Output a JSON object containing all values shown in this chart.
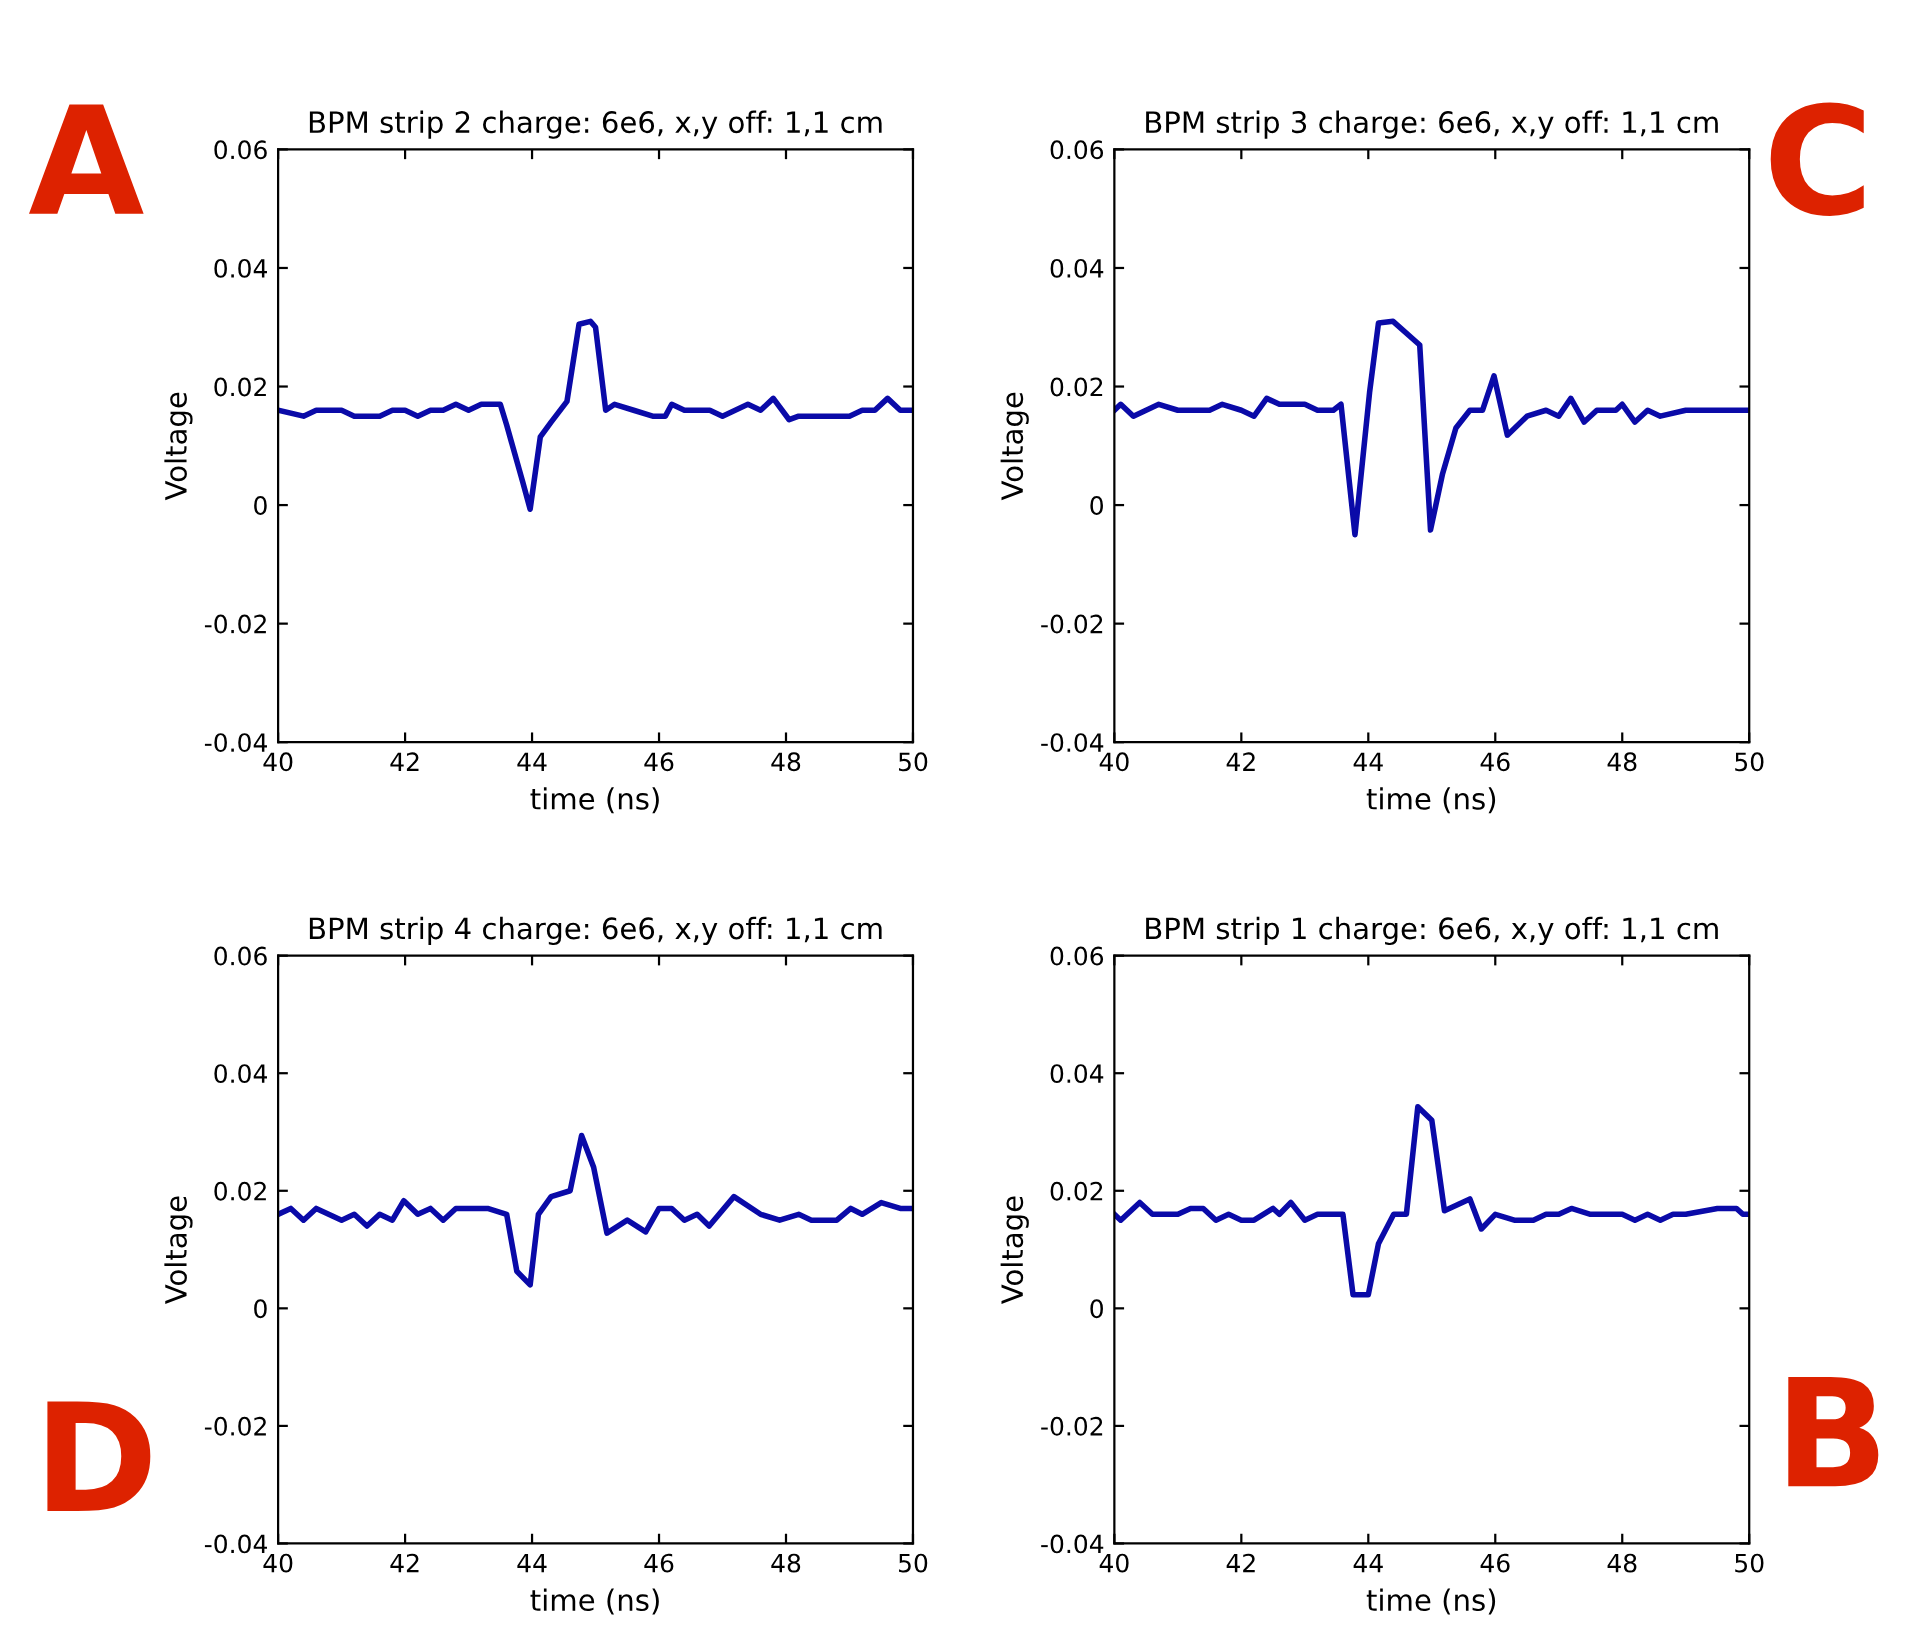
{
  "chart_data": [
    {
      "type": "line",
      "title": "BPM strip 2 charge: 6e6, x,y off: 1,1 cm",
      "xlabel": "time (ns)",
      "ylabel": "Voltage",
      "annotations": [
        "A"
      ],
      "xlim": [
        40,
        50
      ],
      "ylim": [
        -0.04,
        0.06
      ],
      "xticks": [
        40,
        42,
        44,
        46,
        48,
        50
      ],
      "yticks": [
        -0.04,
        -0.02,
        0,
        0.02,
        0.04,
        0.06
      ],
      "grid": false,
      "legend": false,
      "series": [
        {
          "color": "#0a0aa8",
          "x": [
            40,
            40.4,
            40.6,
            41.0,
            41.2,
            41.6,
            41.8,
            42.0,
            42.2,
            42.4,
            42.6,
            42.8,
            43.0,
            43.2,
            43.5,
            43.6,
            43.85,
            43.97,
            44.13,
            44.3,
            44.55,
            44.74,
            44.92,
            45.0,
            45.16,
            45.3,
            45.6,
            45.9,
            46.1,
            46.2,
            46.4,
            46.8,
            47.0,
            47.2,
            47.4,
            47.6,
            47.8,
            48.05,
            48.2,
            48.6,
            49.0,
            49.2,
            49.4,
            49.6,
            49.8,
            50
          ],
          "values": [
            0.016,
            0.015,
            0.016,
            0.016,
            0.015,
            0.015,
            0.016,
            0.016,
            0.015,
            0.016,
            0.016,
            0.017,
            0.016,
            0.017,
            0.017,
            0.0135,
            0.004,
            -0.0007,
            0.0115,
            0.014,
            0.0175,
            0.0305,
            0.031,
            0.03,
            0.016,
            0.017,
            0.016,
            0.015,
            0.015,
            0.017,
            0.016,
            0.016,
            0.015,
            0.016,
            0.017,
            0.016,
            0.018,
            0.0144,
            0.015,
            0.015,
            0.015,
            0.016,
            0.016,
            0.018,
            0.016,
            0.016
          ]
        }
      ]
    },
    {
      "type": "line",
      "title": "BPM strip 3 charge: 6e6, x,y off: 1,1 cm",
      "xlabel": "time (ns)",
      "ylabel": "Voltage",
      "annotations": [
        "C"
      ],
      "xlim": [
        40,
        50
      ],
      "ylim": [
        -0.04,
        0.06
      ],
      "xticks": [
        40,
        42,
        44,
        46,
        48,
        50
      ],
      "yticks": [
        -0.04,
        -0.02,
        0,
        0.02,
        0.04,
        0.06
      ],
      "grid": false,
      "legend": false,
      "series": [
        {
          "color": "#0a0aa8",
          "x": [
            40,
            40.1,
            40.3,
            40.7,
            41.0,
            41.5,
            41.7,
            42.0,
            42.2,
            42.4,
            42.6,
            43.0,
            43.2,
            43.45,
            43.57,
            43.79,
            44.02,
            44.16,
            44.39,
            44.81,
            44.98,
            45.17,
            45.38,
            45.6,
            45.8,
            45.98,
            46.19,
            46.5,
            46.8,
            47.0,
            47.19,
            47.4,
            47.6,
            47.9,
            48.0,
            48.2,
            48.4,
            48.6,
            49.0,
            49.3,
            49.6,
            50
          ],
          "values": [
            0.016,
            0.017,
            0.015,
            0.017,
            0.016,
            0.016,
            0.017,
            0.016,
            0.015,
            0.018,
            0.017,
            0.017,
            0.016,
            0.016,
            0.017,
            -0.005,
            0.019,
            0.0307,
            0.031,
            0.027,
            -0.0042,
            0.0053,
            0.013,
            0.016,
            0.016,
            0.0218,
            0.0118,
            0.015,
            0.016,
            0.015,
            0.018,
            0.014,
            0.016,
            0.016,
            0.017,
            0.014,
            0.016,
            0.015,
            0.016,
            0.016,
            0.016,
            0.016
          ]
        }
      ]
    },
    {
      "type": "line",
      "title": "BPM strip 4 charge: 6e6, x,y off: 1,1 cm",
      "xlabel": "time (ns)",
      "ylabel": "Voltage",
      "annotations": [
        "D"
      ],
      "xlim": [
        40,
        50
      ],
      "ylim": [
        -0.04,
        0.06
      ],
      "xticks": [
        40,
        42,
        44,
        46,
        48,
        50
      ],
      "yticks": [
        -0.04,
        -0.02,
        0,
        0.02,
        0.04,
        0.06
      ],
      "grid": false,
      "legend": false,
      "series": [
        {
          "color": "#0a0aa8",
          "x": [
            40,
            40.2,
            40.4,
            40.6,
            41.0,
            41.2,
            41.4,
            41.6,
            41.8,
            41.98,
            42.2,
            42.4,
            42.6,
            42.8,
            43.3,
            43.6,
            43.76,
            43.97,
            44.1,
            44.3,
            44.6,
            44.78,
            44.97,
            45.18,
            45.5,
            45.79,
            46.0,
            46.2,
            46.4,
            46.6,
            46.79,
            47.18,
            47.6,
            47.9,
            48.2,
            48.4,
            48.8,
            49.02,
            49.2,
            49.5,
            49.8,
            50
          ],
          "values": [
            0.016,
            0.017,
            0.015,
            0.017,
            0.015,
            0.016,
            0.014,
            0.016,
            0.015,
            0.0183,
            0.016,
            0.017,
            0.015,
            0.017,
            0.017,
            0.016,
            0.0063,
            0.004,
            0.016,
            0.019,
            0.02,
            0.0294,
            0.024,
            0.0128,
            0.015,
            0.013,
            0.017,
            0.017,
            0.015,
            0.016,
            0.014,
            0.019,
            0.016,
            0.015,
            0.016,
            0.015,
            0.015,
            0.017,
            0.016,
            0.018,
            0.017,
            0.017
          ]
        }
      ]
    },
    {
      "type": "line",
      "title": "BPM strip 1 charge: 6e6, x,y off: 1,1 cm",
      "xlabel": "time (ns)",
      "ylabel": "Voltage",
      "annotations": [
        "B"
      ],
      "xlim": [
        40,
        50
      ],
      "ylim": [
        -0.04,
        0.06
      ],
      "xticks": [
        40,
        42,
        44,
        46,
        48,
        50
      ],
      "yticks": [
        -0.04,
        -0.02,
        0,
        0.02,
        0.04,
        0.06
      ],
      "grid": false,
      "legend": false,
      "series": [
        {
          "color": "#0a0aa8",
          "x": [
            40,
            40.1,
            40.4,
            40.6,
            41.0,
            41.2,
            41.4,
            41.6,
            41.8,
            42.0,
            42.2,
            42.5,
            42.6,
            42.78,
            43.0,
            43.2,
            43.6,
            43.76,
            44.0,
            44.16,
            44.4,
            44.6,
            44.78,
            45.0,
            45.2,
            45.6,
            45.78,
            46.0,
            46.3,
            46.6,
            46.8,
            47.0,
            47.2,
            47.5,
            48.0,
            48.2,
            48.4,
            48.6,
            48.8,
            49.0,
            49.5,
            49.8,
            49.9,
            50
          ],
          "values": [
            0.016,
            0.015,
            0.018,
            0.016,
            0.016,
            0.017,
            0.017,
            0.015,
            0.016,
            0.015,
            0.015,
            0.017,
            0.016,
            0.018,
            0.015,
            0.016,
            0.016,
            0.0023,
            0.0023,
            0.011,
            0.016,
            0.016,
            0.0343,
            0.032,
            0.0166,
            0.0186,
            0.0135,
            0.016,
            0.015,
            0.015,
            0.016,
            0.016,
            0.017,
            0.016,
            0.016,
            0.015,
            0.016,
            0.015,
            0.016,
            0.016,
            0.017,
            0.017,
            0.016,
            0.016
          ]
        }
      ]
    }
  ]
}
